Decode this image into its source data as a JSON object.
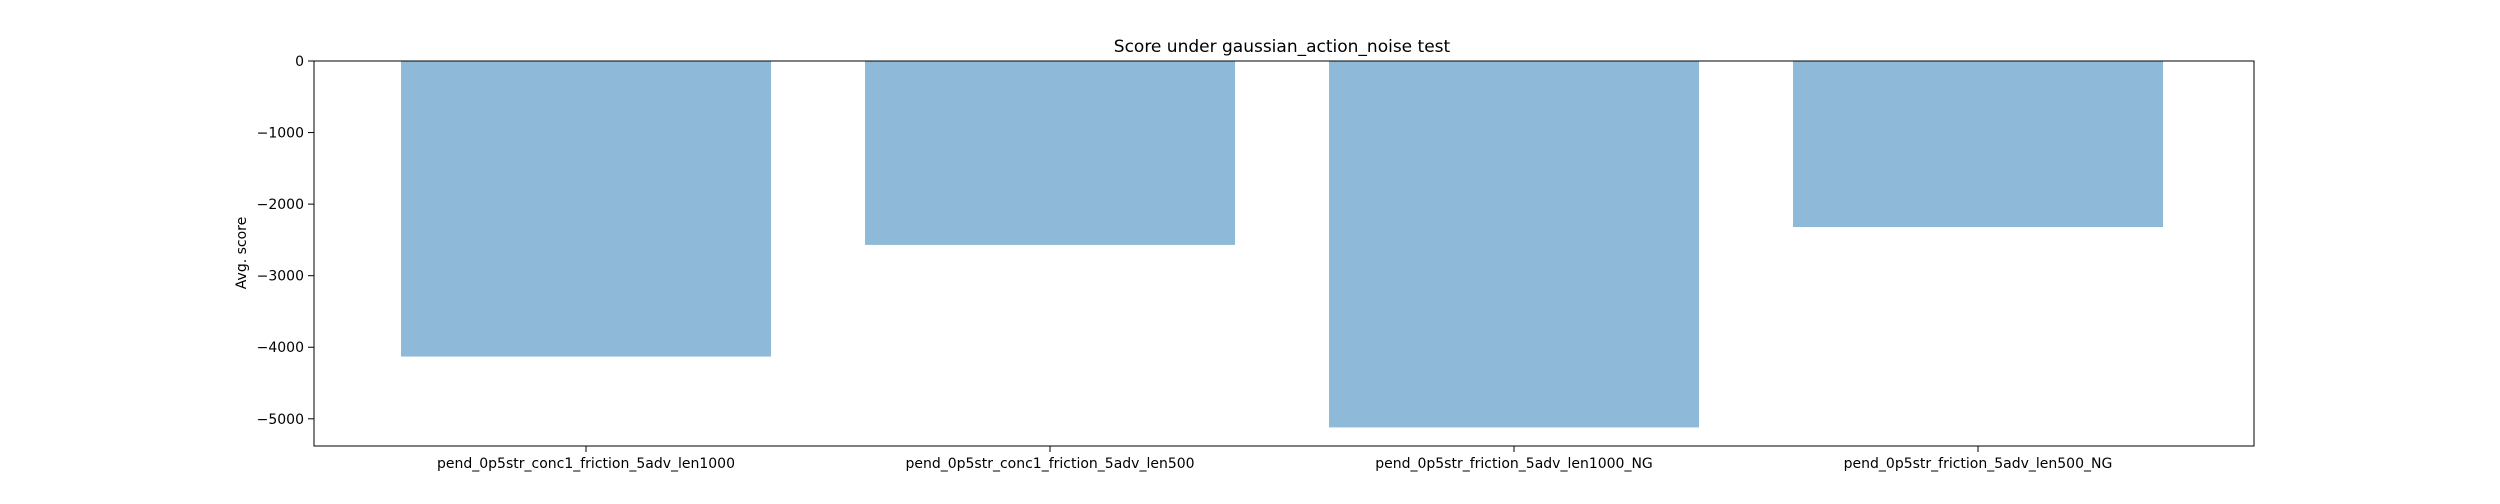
{
  "chart_data": {
    "type": "bar",
    "title": "Score under gaussian_action_noise test",
    "xlabel": "",
    "ylabel": "Avg. score",
    "categories": [
      "pend_0p5str_conc1_friction_5adv_len1000",
      "pend_0p5str_conc1_friction_5adv_len500",
      "pend_0p5str_friction_5adv_len1000_NG",
      "pend_0p5str_friction_5adv_len500_NG"
    ],
    "values": [
      -4130,
      -2570,
      -5120,
      -2320
    ],
    "ylim": [
      -5380,
      0
    ],
    "yticks": [
      0,
      -1000,
      -2000,
      -3000,
      -4000,
      -5000
    ],
    "ytick_labels": [
      "0",
      "−1000",
      "−2000",
      "−3000",
      "−4000",
      "−5000"
    ],
    "bar_color": "#8fb9d9",
    "grid": false,
    "legend": "none"
  }
}
